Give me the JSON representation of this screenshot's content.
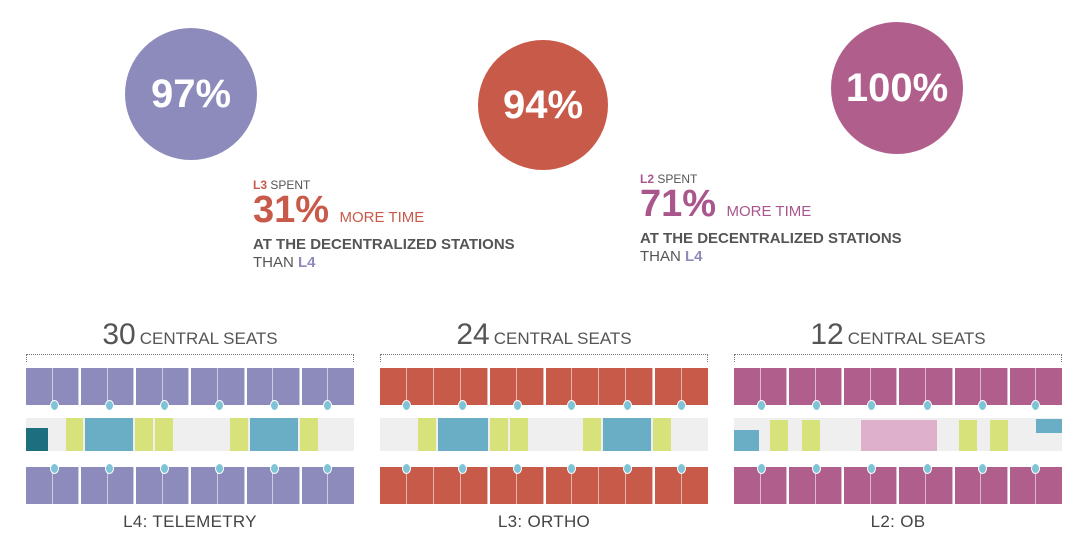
{
  "circles": [
    {
      "id": "l4",
      "value": "97%",
      "color": "#8d8bbb"
    },
    {
      "id": "l3",
      "value": "94%",
      "color": "#c85a4a"
    },
    {
      "id": "l2",
      "value": "100%",
      "color": "#b05f8c"
    }
  ],
  "stats": {
    "l3": {
      "unit": "L3",
      "spent": "SPENT",
      "percent": "31%",
      "more": "MORE TIME",
      "line2": "AT THE DECENTRALIZED STATIONS",
      "than": "THAN",
      "compare": "L4"
    },
    "l2": {
      "unit": "L2",
      "spent": "SPENT",
      "percent": "71%",
      "more": "MORE TIME",
      "line2": "AT THE DECENTRALIZED STATIONS",
      "than": "THAN",
      "compare": "L4"
    }
  },
  "panels": [
    {
      "seats": "30",
      "seats_label": "CENTRAL SEATS",
      "unit_label": "L4: TELEMETRY",
      "color": "#8d8bbb"
    },
    {
      "seats": "24",
      "seats_label": "CENTRAL SEATS",
      "unit_label": "L3: ORTHO",
      "color": "#c85a4a"
    },
    {
      "seats": "12",
      "seats_label": "CENTRAL SEATS",
      "unit_label": "L2: OB",
      "color": "#b05f8c"
    }
  ],
  "colors": {
    "station_teal": "#6aaec6",
    "station_dark_teal": "#1d6f80",
    "highlight_yellow": "#d8e27a",
    "station_pink": "#dfb0cc",
    "corridor_gray": "#efefef",
    "dot_blue": "#7fc4d6"
  }
}
